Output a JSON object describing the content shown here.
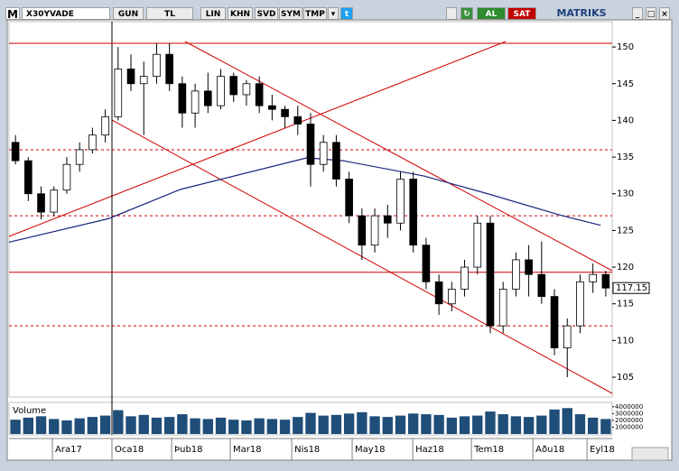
{
  "toolbar": {
    "menu": "M",
    "symbol": "X30YVADE",
    "buttons": [
      "GUN",
      "TL",
      "LIN",
      "KHN",
      "SVD",
      "SYM",
      "TMP"
    ],
    "buy": "AL",
    "sell": "SAT",
    "brand": "MATRIKS"
  },
  "chart_data": {
    "type": "candlestick",
    "up_color": "#ffffff",
    "down_color": "#000000",
    "xlim": [
      0,
      47
    ],
    "xticks": [
      {
        "value": 3.38,
        "label": "Ara17"
      },
      {
        "value": 8.02,
        "label": "Oca18"
      },
      {
        "value": 12.67,
        "label": "Þub18"
      },
      {
        "value": 17.24,
        "label": "Mar18"
      },
      {
        "value": 22.03,
        "label": "Nis18"
      },
      {
        "value": 26.74,
        "label": "May18"
      },
      {
        "value": 31.46,
        "label": "Haz18"
      },
      {
        "value": 36.03,
        "label": "Tem18"
      },
      {
        "value": 40.82,
        "label": "Aðu18"
      },
      {
        "value": 45.04,
        "label": "Eyl18"
      }
    ],
    "ylim": [
      102.3,
      153.7
    ],
    "yticks": [
      105,
      110,
      115,
      120,
      125,
      130,
      135,
      140,
      145,
      150
    ],
    "open": [
      137,
      134.5,
      130,
      127.5,
      130.5,
      134,
      136,
      138,
      140.5,
      147,
      145,
      146,
      149,
      145,
      141,
      144,
      142,
      146,
      143.5,
      145,
      142,
      141.5,
      140.5,
      139.5,
      134,
      137,
      132,
      127,
      123,
      127,
      126,
      132,
      123,
      118,
      115,
      117,
      120,
      126,
      112,
      117,
      121,
      119,
      116,
      109,
      112,
      118,
      119
    ],
    "high": [
      138,
      135,
      131,
      131,
      135,
      137,
      139,
      141.5,
      150,
      149,
      148,
      150.5,
      150.5,
      146,
      145,
      146.5,
      147,
      146.5,
      145.5,
      146,
      143.5,
      142,
      142,
      141,
      138,
      138,
      133,
      128,
      128,
      128.5,
      133,
      133,
      124,
      119,
      118,
      121,
      127,
      127,
      118,
      122,
      123,
      123.5,
      117,
      113,
      119,
      120.5,
      119.5
    ],
    "low": [
      134,
      129,
      126.5,
      127,
      130,
      133,
      135.5,
      137,
      140,
      144,
      138,
      145,
      144,
      139,
      139,
      141,
      141.5,
      142.5,
      142,
      141,
      140,
      139,
      138,
      131,
      133,
      131,
      126,
      121,
      122,
      124,
      125,
      122,
      117,
      113.5,
      114,
      116,
      119,
      111,
      111,
      116,
      116,
      115,
      108,
      105,
      111,
      116.5,
      116
    ],
    "close": [
      134.5,
      130,
      127.5,
      130.5,
      134,
      136,
      138,
      140.5,
      147,
      145,
      146,
      149,
      145,
      141,
      144,
      142,
      146,
      143.5,
      145,
      142,
      141.5,
      140.5,
      139.5,
      134,
      137,
      132,
      127,
      123,
      127,
      126,
      132,
      123,
      118,
      115,
      117,
      120,
      126,
      112,
      117,
      121,
      119,
      116,
      109,
      112,
      118,
      119,
      117.15
    ],
    "last_price": 117.15,
    "moving_average": {
      "color": "#1a237e",
      "x": [
        0,
        7.74,
        13.37,
        23.22,
        26.04,
        32.37,
        37.3,
        42.93,
        46.1
      ],
      "values": [
        123.4,
        126.6,
        130.6,
        134.9,
        134.5,
        132.4,
        130.0,
        127.1,
        125.7
      ]
    },
    "horizontal_lines": [
      {
        "value": 150.5,
        "style": "solid"
      },
      {
        "value": 119.3,
        "style": "solid"
      },
      {
        "value": 136,
        "style": "dashed"
      },
      {
        "value": 127,
        "style": "dashed"
      },
      {
        "value": 112,
        "style": "dashed"
      }
    ],
    "line_color": "#d00000",
    "volume": {
      "name": "Volume",
      "color": "#1f4e79",
      "ylim": [
        0,
        4500000
      ],
      "yticks": [
        4000000,
        3000000,
        2000000,
        1000000
      ],
      "values": [
        2100000,
        2400000,
        2600000,
        2200000,
        2000000,
        2300000,
        2500000,
        2700000,
        3500000,
        2600000,
        2800000,
        2400000,
        2500000,
        2900000,
        2300000,
        2200000,
        2400000,
        2100000,
        2000000,
        2300000,
        2200000,
        2100000,
        2500000,
        3100000,
        2700000,
        2800000,
        3000000,
        3200000,
        2600000,
        2500000,
        2700000,
        3000000,
        2900000,
        2800000,
        2400000,
        2600000,
        2700000,
        3300000,
        2900000,
        2600000,
        2500000,
        2700000,
        3600000,
        3800000,
        2900000,
        2400000,
        2200000
      ]
    }
  }
}
